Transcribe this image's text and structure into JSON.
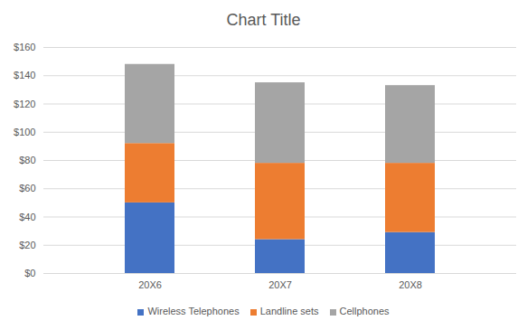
{
  "chart_data": {
    "type": "bar",
    "title": "Chart Title",
    "stacked": true,
    "categories": [
      "20X6",
      "20X7",
      "20X8"
    ],
    "series": [
      {
        "name": "Wireless Telephones",
        "color": "#4472c4",
        "values": [
          50,
          24,
          29
        ]
      },
      {
        "name": "Landline sets",
        "color": "#ed7d31",
        "values": [
          42,
          54,
          49
        ]
      },
      {
        "name": "Cellphones",
        "color": "#a5a5a5",
        "values": [
          56,
          57,
          55
        ]
      }
    ],
    "ylim": [
      0,
      160
    ],
    "yticks": [
      {
        "value": 0,
        "label": "$0"
      },
      {
        "value": 20,
        "label": "$20"
      },
      {
        "value": 40,
        "label": "$40"
      },
      {
        "value": 60,
        "label": "$60"
      },
      {
        "value": 80,
        "label": "$80"
      },
      {
        "value": 100,
        "label": "$100"
      },
      {
        "value": 120,
        "label": "$120"
      },
      {
        "value": 140,
        "label": "$140"
      },
      {
        "value": 160,
        "label": "$160"
      }
    ],
    "grid": true,
    "legend": "bottom"
  }
}
